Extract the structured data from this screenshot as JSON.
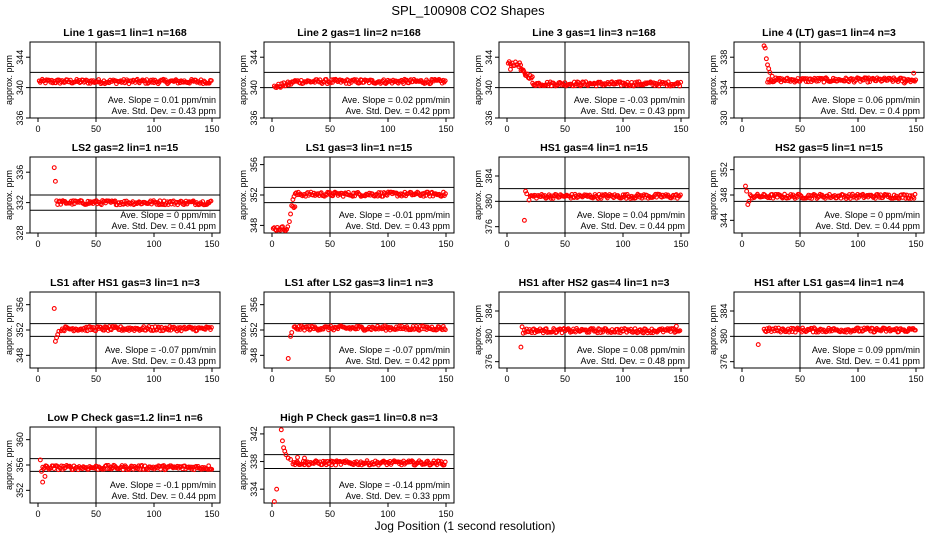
{
  "figure": {
    "title": "SPL_100908  CO2 Shapes",
    "xlabel": "Jog Position (1 second resolution)",
    "slope_label": "Ave. Slope =",
    "slope_unit": "ppm/min",
    "std_label": "Ave. Std. Dev. =",
    "std_unit": "ppm",
    "ylabel": "approx. ppm"
  },
  "colors": {
    "points": "#ff0000",
    "axes": "#000000"
  },
  "chart_data": [
    {
      "type": "scatter",
      "title": "Line 1 gas=1 lin=1 n=168",
      "xlim": [
        0,
        150
      ],
      "xticks": [
        0,
        50,
        100,
        150
      ],
      "ylim": [
        336,
        346
      ],
      "yticks": [
        336,
        340,
        344
      ],
      "hlines": [
        340,
        342
      ],
      "vline": 50,
      "slope": "0.01",
      "std": "0.43",
      "segments": [
        {
          "x": [
            1,
            150
          ],
          "y": [
            340.8,
            340.8
          ]
        }
      ],
      "outliers": []
    },
    {
      "type": "scatter",
      "title": "Line 2 gas=1 lin=2 n=168",
      "xlim": [
        0,
        150
      ],
      "xticks": [
        0,
        50,
        100,
        150
      ],
      "ylim": [
        336,
        346
      ],
      "yticks": [
        336,
        340,
        344
      ],
      "hlines": [
        340,
        342
      ],
      "vline": 50,
      "slope": "0.02",
      "std": "0.42",
      "segments": [
        {
          "x": [
            2,
            18
          ],
          "y": [
            340.1,
            340.6
          ]
        },
        {
          "x": [
            18,
            150
          ],
          "y": [
            340.8,
            340.8
          ]
        }
      ],
      "outliers": []
    },
    {
      "type": "scatter",
      "title": "Line 3 gas=1 lin=3 n=168",
      "xlim": [
        0,
        150
      ],
      "xticks": [
        0,
        50,
        100,
        150
      ],
      "ylim": [
        336,
        346
      ],
      "yticks": [
        336,
        340,
        344
      ],
      "hlines": [
        340,
        342
      ],
      "vline": 50,
      "slope": "-0.03",
      "std": "0.43",
      "segments": [
        {
          "x": [
            1,
            12
          ],
          "y": [
            343.2,
            343.0
          ]
        },
        {
          "x": [
            12,
            22
          ],
          "y": [
            342.2,
            341.2
          ]
        },
        {
          "x": [
            22,
            150
          ],
          "y": [
            340.5,
            340.5
          ]
        }
      ],
      "outliers": [
        {
          "x": 3,
          "y": 342.4
        },
        {
          "x": 14,
          "y": 342.3
        },
        {
          "x": 16,
          "y": 341.6
        }
      ]
    },
    {
      "type": "scatter",
      "title": "Line 4 (LT) gas=1 lin=4 n=3",
      "xlim": [
        0,
        150
      ],
      "xticks": [
        0,
        50,
        100,
        150
      ],
      "ylim": [
        330,
        340
      ],
      "yticks": [
        330,
        334,
        338
      ],
      "hlines": [
        334,
        336
      ],
      "vline": 50,
      "slope": "0.06",
      "std": "0.4",
      "segments": [
        {
          "x": [
            22,
            150
          ],
          "y": [
            335.0,
            335.0
          ]
        }
      ],
      "outliers": [
        {
          "x": 19,
          "y": 339.5
        },
        {
          "x": 20,
          "y": 339.2
        },
        {
          "x": 21,
          "y": 337.8
        },
        {
          "x": 22,
          "y": 337.0
        },
        {
          "x": 23,
          "y": 336.5
        },
        {
          "x": 24,
          "y": 336.0
        },
        {
          "x": 26,
          "y": 335.5
        },
        {
          "x": 140,
          "y": 334.6
        },
        {
          "x": 148,
          "y": 335.9
        }
      ]
    },
    {
      "type": "scatter",
      "title": "LS2 gas=2 lin=1 n=15",
      "xlim": [
        0,
        150
      ],
      "xticks": [
        0,
        50,
        100,
        150
      ],
      "ylim": [
        328,
        338
      ],
      "yticks": [
        328,
        332,
        336
      ],
      "hlines": [
        331,
        333
      ],
      "vline": 50,
      "slope": "0",
      "std": "0.41",
      "segments": [
        {
          "x": [
            16,
            150
          ],
          "y": [
            332.0,
            332.0
          ]
        }
      ],
      "outliers": [
        {
          "x": 14,
          "y": 336.6
        },
        {
          "x": 15,
          "y": 334.8
        }
      ]
    },
    {
      "type": "scatter",
      "title": "LS1 gas=3 lin=1 n=15",
      "xlim": [
        0,
        150
      ],
      "xticks": [
        0,
        50,
        100,
        150
      ],
      "ylim": [
        347,
        357
      ],
      "yticks": [
        348,
        352,
        356
      ],
      "hlines": [
        351,
        353
      ],
      "vline": 50,
      "slope": "-0.01",
      "std": "0.43",
      "segments": [
        {
          "x": [
            1,
            14
          ],
          "y": [
            347.6,
            347.6
          ]
        },
        {
          "x": 18,
          "y": [
            350.5,
            350.5
          ],
          "x2": 20
        },
        {
          "x": [
            20,
            150
          ],
          "y": [
            352.1,
            352.1
          ]
        }
      ],
      "outliers": [
        {
          "x": 15,
          "y": 348.5
        },
        {
          "x": 16,
          "y": 349.5
        },
        {
          "x": 17,
          "y": 350.6
        },
        {
          "x": 18,
          "y": 351.4
        },
        {
          "x": 19,
          "y": 351.8
        }
      ]
    },
    {
      "type": "scatter",
      "title": "HS1 gas=4 lin=1 n=15",
      "xlim": [
        0,
        150
      ],
      "xticks": [
        0,
        50,
        100,
        150
      ],
      "ylim": [
        375,
        387
      ],
      "yticks": [
        376,
        380,
        384
      ],
      "hlines": [
        380,
        382
      ],
      "vline": 50,
      "slope": "0.04",
      "std": "0.44",
      "segments": [
        {
          "x": [
            20,
            150
          ],
          "y": [
            380.8,
            380.8
          ]
        }
      ],
      "outliers": [
        {
          "x": 15,
          "y": 377.0
        },
        {
          "x": 16,
          "y": 381.6
        },
        {
          "x": 17,
          "y": 381.2
        },
        {
          "x": 19,
          "y": 380.2
        }
      ]
    },
    {
      "type": "scatter",
      "title": "HS2 gas=5 lin=1 n=15",
      "xlim": [
        0,
        150
      ],
      "xticks": [
        0,
        50,
        100,
        150
      ],
      "ylim": [
        342,
        354
      ],
      "yticks": [
        344,
        348,
        352
      ],
      "hlines": [
        347,
        349
      ],
      "vline": 50,
      "slope": "0",
      "std": "0.44",
      "segments": [
        {
          "x": [
            7,
            150
          ],
          "y": [
            347.8,
            347.8
          ]
        }
      ],
      "outliers": [
        {
          "x": 3,
          "y": 349.4
        },
        {
          "x": 4,
          "y": 348.6
        },
        {
          "x": 5,
          "y": 346.5
        },
        {
          "x": 6,
          "y": 347.0
        }
      ]
    },
    {
      "type": "scatter",
      "title": "LS1 after HS1 gas=3 lin=1 n=3",
      "xlim": [
        0,
        150
      ],
      "xticks": [
        0,
        50,
        100,
        150
      ],
      "ylim": [
        346,
        358
      ],
      "yticks": [
        348,
        352,
        356
      ],
      "hlines": [
        351,
        353
      ],
      "vline": 50,
      "slope": "-0.07",
      "std": "0.43",
      "segments": [
        {
          "x": [
            20,
            150
          ],
          "y": [
            352.2,
            352.2
          ]
        }
      ],
      "outliers": [
        {
          "x": 14,
          "y": 355.4
        },
        {
          "x": 15,
          "y": 350.2
        },
        {
          "x": 16,
          "y": 350.8
        },
        {
          "x": 17,
          "y": 351.3
        },
        {
          "x": 18,
          "y": 351.8
        }
      ]
    },
    {
      "type": "scatter",
      "title": "LS1 after LS2 gas=3 lin=1 n=3",
      "xlim": [
        0,
        150
      ],
      "xticks": [
        0,
        50,
        100,
        150
      ],
      "ylim": [
        346,
        358
      ],
      "yticks": [
        348,
        352,
        356
      ],
      "hlines": [
        351,
        353
      ],
      "vline": 50,
      "slope": "-0.07",
      "std": "0.42",
      "segments": [
        {
          "x": [
            19,
            150
          ],
          "y": [
            352.3,
            352.3
          ]
        }
      ],
      "outliers": [
        {
          "x": 14,
          "y": 347.5
        },
        {
          "x": 16,
          "y": 351.0
        },
        {
          "x": 17,
          "y": 351.6
        }
      ]
    },
    {
      "type": "scatter",
      "title": "HS1 after HS2 gas=4 lin=1 n=3",
      "xlim": [
        0,
        150
      ],
      "xticks": [
        0,
        50,
        100,
        150
      ],
      "ylim": [
        375,
        387
      ],
      "yticks": [
        376,
        380,
        384
      ],
      "hlines": [
        380,
        382
      ],
      "vline": 50,
      "slope": "0.08",
      "std": "0.48",
      "segments": [
        {
          "x": [
            15,
            150
          ],
          "y": [
            380.9,
            380.9
          ]
        }
      ],
      "outliers": [
        {
          "x": 12,
          "y": 378.3
        },
        {
          "x": 13,
          "y": 381.5
        },
        {
          "x": 14,
          "y": 380.5
        },
        {
          "x": 146,
          "y": 381.6
        }
      ]
    },
    {
      "type": "scatter",
      "title": "HS1 after LS1 gas=4 lin=1 n=4",
      "xlim": [
        0,
        150
      ],
      "xticks": [
        0,
        50,
        100,
        150
      ],
      "ylim": [
        375,
        387
      ],
      "yticks": [
        376,
        380,
        384
      ],
      "hlines": [
        380,
        382
      ],
      "vline": 50,
      "slope": "0.09",
      "std": "0.41",
      "segments": [
        {
          "x": [
            19,
            150
          ],
          "y": [
            381.0,
            381.0
          ]
        }
      ],
      "outliers": [
        {
          "x": 14,
          "y": 378.7
        }
      ]
    },
    {
      "type": "scatter",
      "title": "Low P Check gas=1.2 lin=1 n=6",
      "xlim": [
        0,
        150
      ],
      "xticks": [
        0,
        50,
        100,
        150
      ],
      "ylim": [
        350,
        362
      ],
      "yticks": [
        352,
        356,
        360
      ],
      "hlines": [
        355,
        357
      ],
      "vline": 50,
      "slope": "-0.1",
      "std": "0.44",
      "segments": [
        {
          "x": [
            4,
            150
          ],
          "y": [
            355.6,
            355.6
          ]
        }
      ],
      "outliers": [
        {
          "x": 2,
          "y": 356.8
        },
        {
          "x": 3,
          "y": 355.0
        },
        {
          "x": 4,
          "y": 353.3
        },
        {
          "x": 6,
          "y": 354.2
        }
      ]
    },
    {
      "type": "scatter",
      "title": "High P Check gas=1 lin=0.8 n=3",
      "xlim": [
        0,
        150
      ],
      "xticks": [
        0,
        50,
        100,
        150
      ],
      "ylim": [
        332,
        343
      ],
      "yticks": [
        334,
        338,
        342
      ],
      "hlines": [
        337,
        339
      ],
      "vline": 50,
      "slope": "-0.14",
      "std": "0.33",
      "segments": [
        {
          "x": [
            18,
            150
          ],
          "y": [
            337.8,
            337.8
          ]
        }
      ],
      "outliers": [
        {
          "x": 2,
          "y": 332.2
        },
        {
          "x": 4,
          "y": 334.0
        },
        {
          "x": 8,
          "y": 342.6
        },
        {
          "x": 9,
          "y": 341.0
        },
        {
          "x": 10,
          "y": 340.0
        },
        {
          "x": 11,
          "y": 339.5
        },
        {
          "x": 12,
          "y": 339.0
        },
        {
          "x": 14,
          "y": 338.5
        },
        {
          "x": 16,
          "y": 338.3
        },
        {
          "x": 22,
          "y": 338.6
        },
        {
          "x": 28,
          "y": 338.5
        }
      ]
    }
  ]
}
